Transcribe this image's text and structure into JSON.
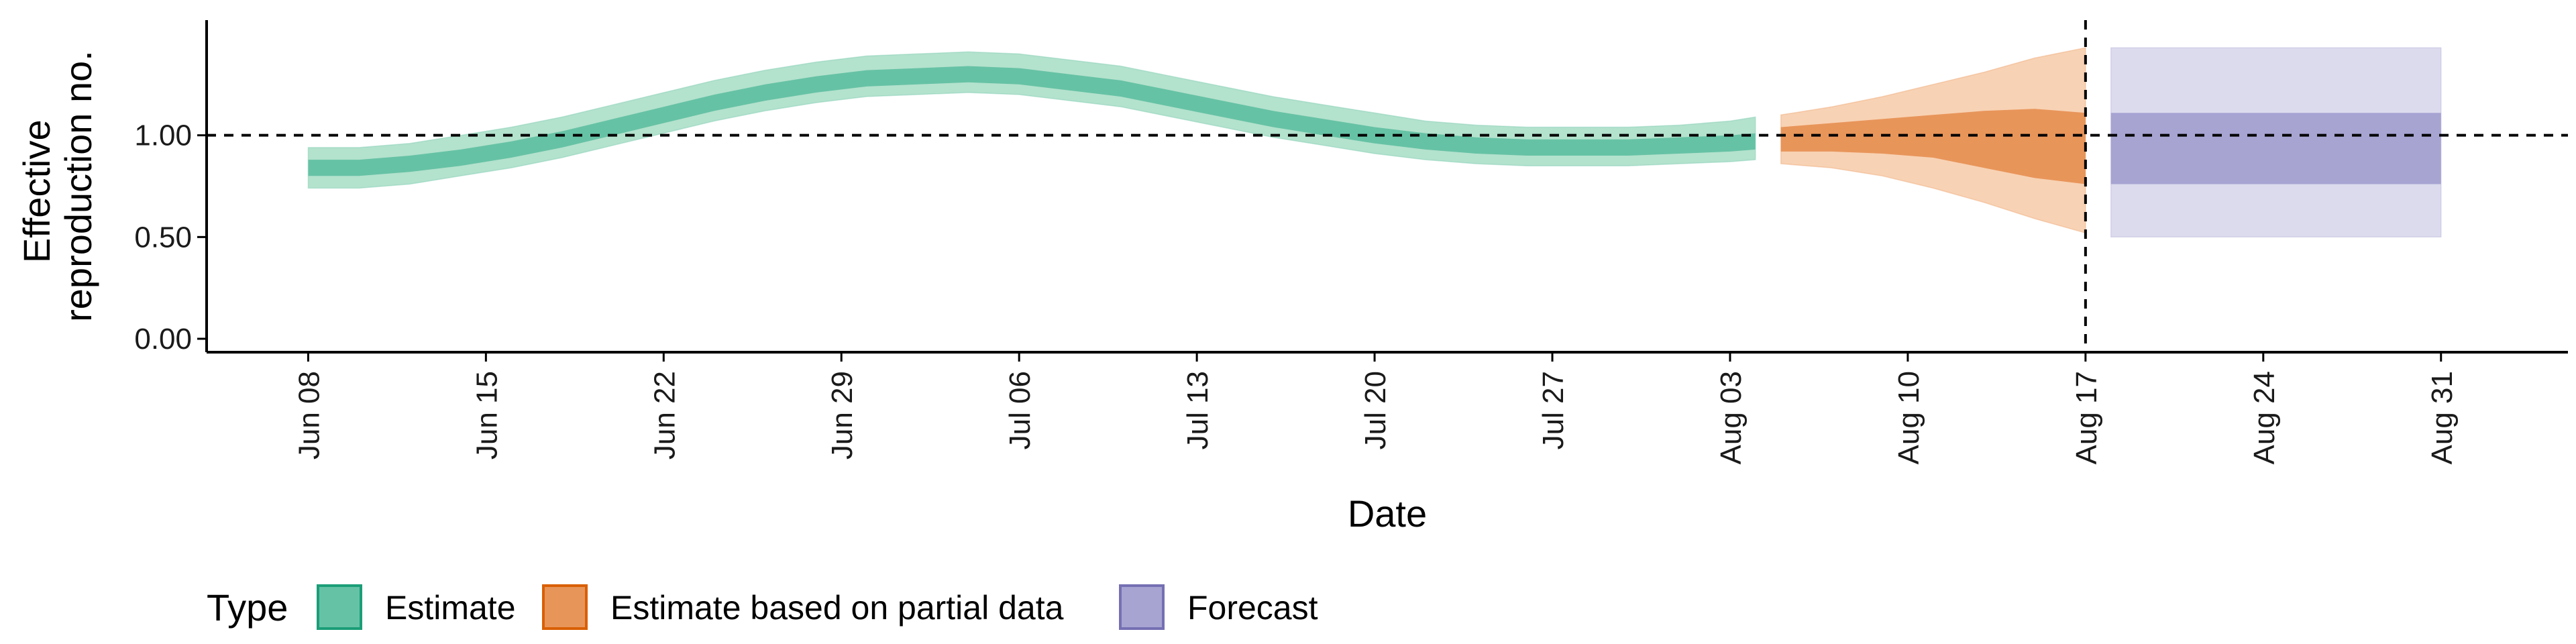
{
  "chart_data": {
    "type": "area",
    "xlabel": "Date",
    "ylabel": [
      "Effective",
      "reproduction no."
    ],
    "ylim": [
      0,
      1.5
    ],
    "y_ticks": [
      "0.00",
      "0.50",
      "1.00"
    ],
    "y_tick_values": [
      0,
      0.5,
      1.0
    ],
    "x_ticks": [
      {
        "label": "Jun 08",
        "date": "2020-06-08"
      },
      {
        "label": "Jun 15",
        "date": "2020-06-15"
      },
      {
        "label": "Jun 22",
        "date": "2020-06-22"
      },
      {
        "label": "Jun 29",
        "date": "2020-06-29"
      },
      {
        "label": "Jul 06",
        "date": "2020-07-06"
      },
      {
        "label": "Jul 13",
        "date": "2020-07-13"
      },
      {
        "label": "Jul 20",
        "date": "2020-07-20"
      },
      {
        "label": "Jul 27",
        "date": "2020-07-27"
      },
      {
        "label": "Aug 03",
        "date": "2020-08-03"
      },
      {
        "label": "Aug 10",
        "date": "2020-08-10"
      },
      {
        "label": "Aug 17",
        "date": "2020-08-17"
      },
      {
        "label": "Aug 24",
        "date": "2020-08-24"
      },
      {
        "label": "Aug 31",
        "date": "2020-08-31"
      }
    ],
    "xlim": [
      "2020-06-04",
      "2020-09-05"
    ],
    "reference_line_y": 1.0,
    "reference_line_x": "2020-08-17",
    "legend": {
      "title": "Type",
      "position": "bottom",
      "entries": [
        "Estimate",
        "Estimate based on partial data",
        "Forecast"
      ]
    },
    "colors": {
      "estimate": "#66c2a5",
      "estimate_outer": "#b3e2cd",
      "estimate_border": "#1b9e77",
      "partial": "#e8955a",
      "partial_outer": "#f8d2b4",
      "partial_border": "#d95f02",
      "forecast": "#a7a4d2",
      "forecast_outer": "#dcdbee",
      "forecast_border": "#7570b3"
    },
    "series": [
      {
        "name": "Estimate",
        "dates": [
          "2020-06-08",
          "2020-06-10",
          "2020-06-12",
          "2020-06-14",
          "2020-06-16",
          "2020-06-18",
          "2020-06-20",
          "2020-06-22",
          "2020-06-24",
          "2020-06-26",
          "2020-06-28",
          "2020-06-30",
          "2020-07-02",
          "2020-07-04",
          "2020-07-06",
          "2020-07-08",
          "2020-07-10",
          "2020-07-12",
          "2020-07-14",
          "2020-07-16",
          "2020-07-18",
          "2020-07-20",
          "2020-07-22",
          "2020-07-24",
          "2020-07-26",
          "2020-07-28",
          "2020-07-30",
          "2020-08-01",
          "2020-08-03",
          "2020-08-04"
        ],
        "median": [
          0.84,
          0.84,
          0.86,
          0.89,
          0.93,
          0.98,
          1.04,
          1.1,
          1.16,
          1.21,
          1.25,
          1.28,
          1.29,
          1.3,
          1.29,
          1.26,
          1.23,
          1.18,
          1.13,
          1.08,
          1.04,
          1.0,
          0.97,
          0.95,
          0.94,
          0.94,
          0.94,
          0.95,
          0.96,
          0.97
        ],
        "inner_lower": [
          0.8,
          0.8,
          0.82,
          0.85,
          0.89,
          0.94,
          1.0,
          1.06,
          1.12,
          1.17,
          1.21,
          1.24,
          1.25,
          1.26,
          1.25,
          1.22,
          1.19,
          1.14,
          1.09,
          1.04,
          1.0,
          0.96,
          0.93,
          0.91,
          0.9,
          0.9,
          0.9,
          0.91,
          0.92,
          0.93
        ],
        "inner_upper": [
          0.88,
          0.88,
          0.9,
          0.93,
          0.97,
          1.02,
          1.08,
          1.14,
          1.2,
          1.25,
          1.29,
          1.32,
          1.33,
          1.34,
          1.33,
          1.3,
          1.27,
          1.22,
          1.17,
          1.12,
          1.08,
          1.04,
          1.01,
          0.99,
          0.98,
          0.98,
          0.98,
          0.99,
          1.0,
          1.01
        ],
        "outer_lower": [
          0.74,
          0.74,
          0.76,
          0.8,
          0.84,
          0.89,
          0.95,
          1.01,
          1.07,
          1.12,
          1.16,
          1.19,
          1.2,
          1.21,
          1.2,
          1.17,
          1.14,
          1.09,
          1.04,
          0.99,
          0.95,
          0.91,
          0.88,
          0.86,
          0.85,
          0.85,
          0.85,
          0.86,
          0.87,
          0.88
        ],
        "outer_upper": [
          0.94,
          0.94,
          0.96,
          1.0,
          1.04,
          1.09,
          1.15,
          1.21,
          1.27,
          1.32,
          1.36,
          1.39,
          1.4,
          1.41,
          1.4,
          1.37,
          1.34,
          1.29,
          1.24,
          1.19,
          1.15,
          1.11,
          1.07,
          1.05,
          1.04,
          1.04,
          1.04,
          1.05,
          1.07,
          1.09
        ]
      },
      {
        "name": "Estimate based on partial data",
        "dates": [
          "2020-08-05",
          "2020-08-07",
          "2020-08-09",
          "2020-08-11",
          "2020-08-13",
          "2020-08-15",
          "2020-08-17"
        ],
        "inner_lower": [
          0.92,
          0.92,
          0.91,
          0.89,
          0.84,
          0.79,
          0.76
        ],
        "inner_upper": [
          1.04,
          1.06,
          1.08,
          1.1,
          1.12,
          1.13,
          1.11
        ],
        "outer_lower": [
          0.86,
          0.84,
          0.8,
          0.74,
          0.67,
          0.59,
          0.52
        ],
        "outer_upper": [
          1.1,
          1.14,
          1.19,
          1.25,
          1.31,
          1.38,
          1.43
        ]
      },
      {
        "name": "Forecast",
        "dates": [
          "2020-08-18",
          "2020-08-31"
        ],
        "inner_lower": [
          0.76,
          0.76
        ],
        "inner_upper": [
          1.11,
          1.11
        ],
        "outer_lower": [
          0.5,
          0.5
        ],
        "outer_upper": [
          1.43,
          1.43
        ]
      }
    ]
  }
}
